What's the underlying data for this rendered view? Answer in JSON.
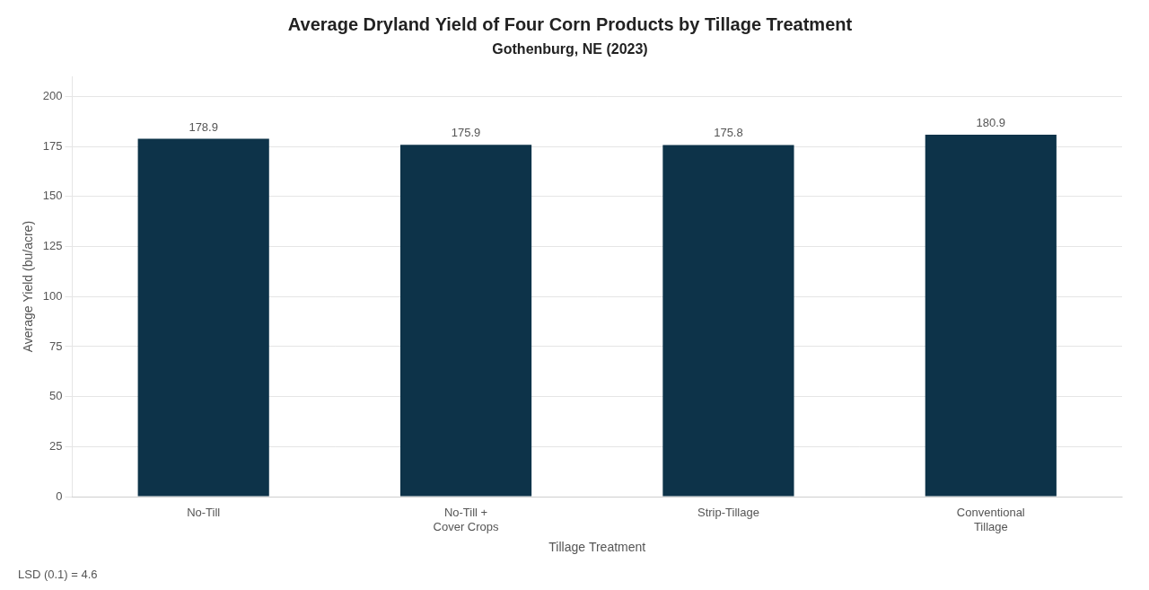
{
  "chart_data": {
    "type": "bar",
    "title": "Average Dryland Yield of Four Corn Products by Tillage Treatment",
    "subtitle": "Gothenburg, NE (2023)",
    "categories": [
      "No-Till",
      "No-Till +\nCover Crops",
      "Strip-Tillage",
      "Conventional\nTillage"
    ],
    "values": [
      178.9,
      175.9,
      175.8,
      180.9
    ],
    "color": "#0d3349",
    "xlabel": "Tillage Treatment",
    "ylabel": "Average Yield (bu/acre)",
    "ylim": [
      0,
      210
    ],
    "yticks": [
      0,
      25,
      50,
      75,
      100,
      125,
      150,
      175,
      200
    ],
    "grid": true,
    "data_labels": true,
    "annotations": [
      "LSD (0.1) = 4.6"
    ]
  }
}
